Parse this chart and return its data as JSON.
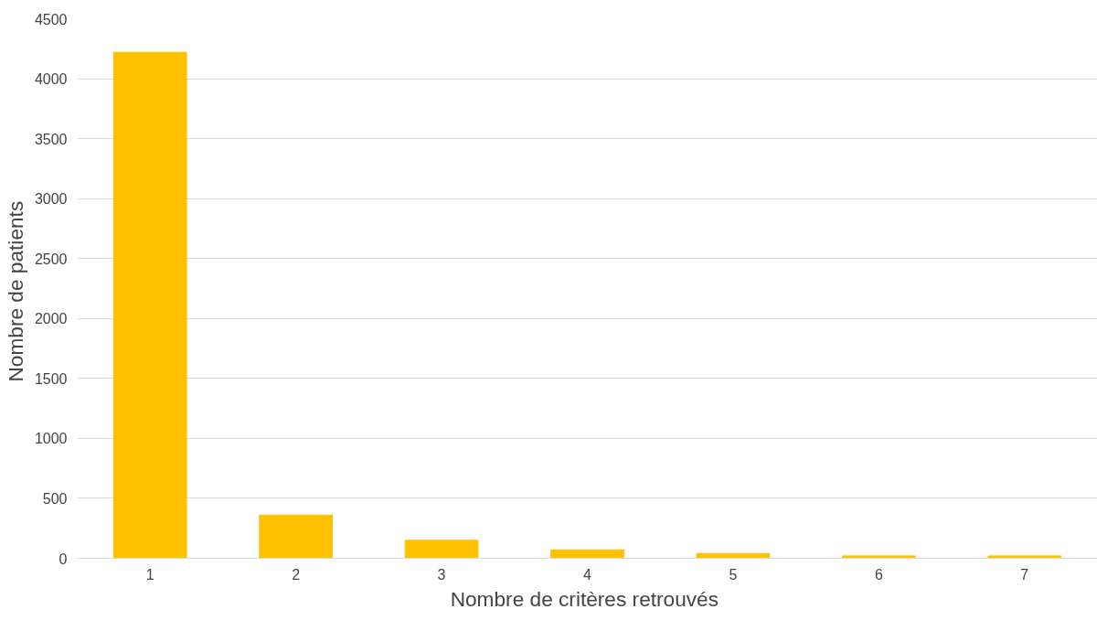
{
  "chart_data": {
    "type": "bar",
    "xlabel": "Nombre  de critères retrouvés",
    "ylabel": "Nombre  de patients",
    "categories": [
      "1",
      "2",
      "3",
      "4",
      "5",
      "6",
      "7"
    ],
    "values": [
      4220,
      360,
      150,
      70,
      40,
      20,
      20
    ],
    "color": "#ffc000",
    "ylim": [
      0,
      4500
    ],
    "yticks": [
      0,
      500,
      1000,
      1500,
      2000,
      2500,
      3000,
      3500,
      4000,
      4500
    ],
    "grid": "y"
  }
}
